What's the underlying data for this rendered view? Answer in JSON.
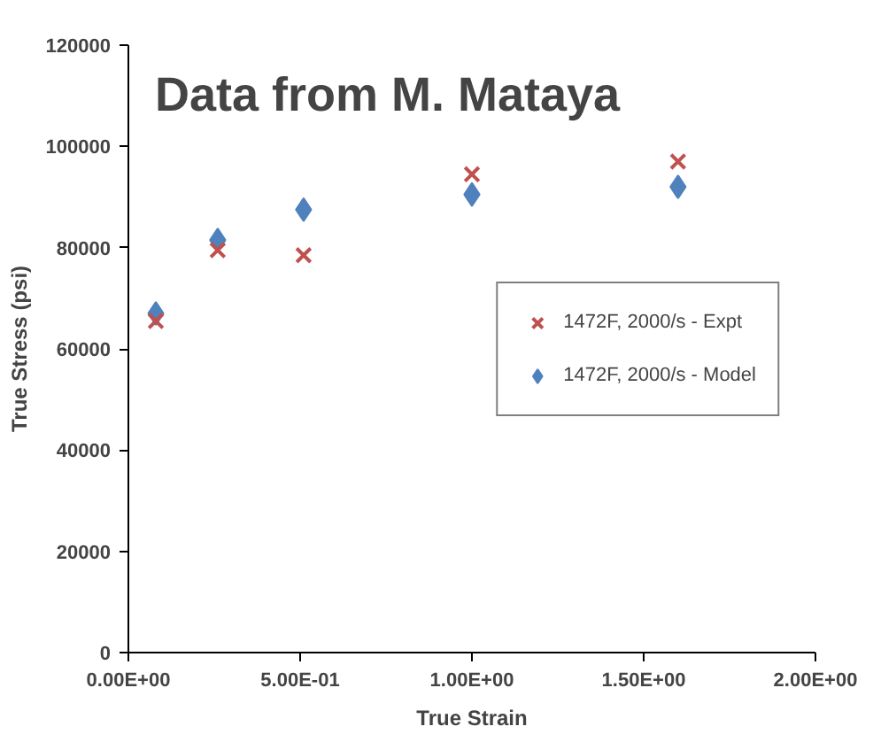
{
  "chart_data": {
    "type": "scatter",
    "xlabel": "True Strain",
    "ylabel": "True Stress (psi)",
    "annotations": [
      "Data from M. Mataya"
    ],
    "series": [
      {
        "name": "1472F, 2000/s - Expt",
        "color": "#c0504d",
        "marker": "cross",
        "x": [
          0.08,
          0.26,
          0.51,
          1.0,
          1.6
        ],
        "values": [
          65500,
          79500,
          78500,
          94500,
          97000
        ]
      },
      {
        "name": "1472F, 2000/s - Model",
        "color": "#4f81bd",
        "marker": "diamond",
        "x": [
          0.08,
          0.26,
          0.51,
          1.0,
          1.6
        ],
        "values": [
          67000,
          81500,
          87500,
          90500,
          92000
        ]
      }
    ],
    "xlim": [
      0,
      2
    ],
    "xticks": [
      {
        "value": 0,
        "label": "0.00E+00"
      },
      {
        "value": 0.5,
        "label": "5.00E-01"
      },
      {
        "value": 1,
        "label": "1.00E+00"
      },
      {
        "value": 1.5,
        "label": "1.50E+00"
      },
      {
        "value": 2,
        "label": "2.00E+00"
      }
    ],
    "ylim": [
      0,
      120000
    ],
    "yticks": [
      0,
      20000,
      40000,
      60000,
      80000,
      100000,
      120000
    ],
    "grid": false,
    "legend": "right"
  }
}
